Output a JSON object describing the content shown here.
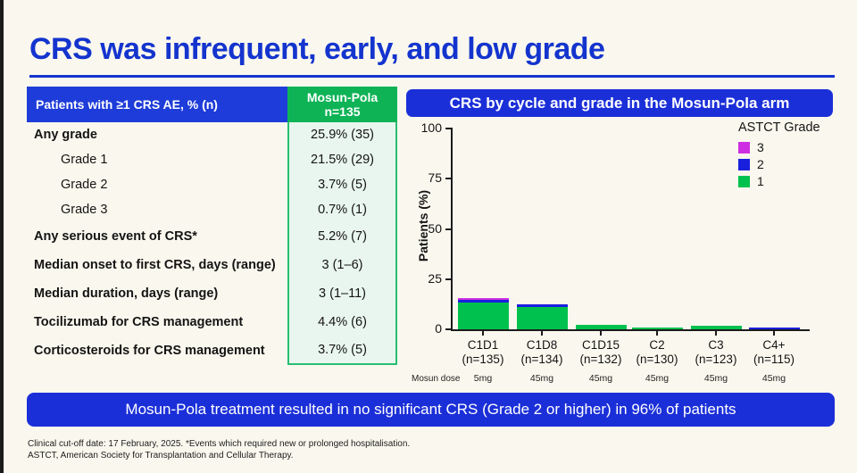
{
  "title": "CRS was infrequent, early, and low grade",
  "table": {
    "header": {
      "label": "Patients with ≥1 CRS AE, % (n)",
      "arm": "Mosun-Pola",
      "arm_n": "n=135"
    },
    "rows": [
      {
        "label": "Any grade",
        "value": "25.9% (35)"
      },
      {
        "label": "Grade 1",
        "value": "21.5% (29)"
      },
      {
        "label": "Grade 2",
        "value": "3.7% (5)"
      },
      {
        "label": "Grade 3",
        "value": "0.7% (1)"
      },
      {
        "label": "Any serious event of CRS*",
        "value": "5.2% (7)"
      },
      {
        "label": "Median onset to first CRS, days (range)",
        "value": "3 (1–6)"
      },
      {
        "label": "Median duration, days (range)",
        "value": "3 (1–11)"
      },
      {
        "label": "Tocilizumab for CRS management",
        "value": "4.4% (6)"
      },
      {
        "label": "Corticosteroids for CRS management",
        "value": "3.7% (5)"
      }
    ]
  },
  "chart": {
    "header": "CRS by cycle and grade in the Mosun-Pola arm"
  },
  "chart_data": {
    "type": "bar",
    "stacked": true,
    "title": "CRS by cycle and grade in the Mosun-Pola arm",
    "ylabel": "Patients (%)",
    "ylim": [
      0,
      100
    ],
    "yticks": [
      0,
      25,
      50,
      75,
      100
    ],
    "grid": false,
    "legend_position": "top-right",
    "legend_title": "ASTCT Grade",
    "categories": [
      "C1D1",
      "C1D8",
      "C1D15",
      "C2",
      "C3",
      "C4+"
    ],
    "category_n": [
      "(n=135)",
      "(n=134)",
      "(n=132)",
      "(n=130)",
      "(n=123)",
      "(n=115)"
    ],
    "dose_row_label": "Mosun dose",
    "doses": [
      "5mg",
      "45mg",
      "45mg",
      "45mg",
      "45mg",
      "45mg"
    ],
    "series": [
      {
        "name": "1",
        "color": "#00C14E",
        "values": [
          13.3,
          11.2,
          2.3,
          0.8,
          1.6,
          0
        ]
      },
      {
        "name": "2",
        "color": "#1A1FDE",
        "values": [
          1.5,
          1.3,
          0,
          0,
          0,
          0.9
        ]
      },
      {
        "name": "3",
        "color": "#CE2FE3",
        "values": [
          0.7,
          0,
          0,
          0,
          0,
          0
        ]
      }
    ]
  },
  "banner": "Mosun-Pola treatment resulted in no significant CRS (Grade 2 or higher) in 96% of patients",
  "footnotes": [
    "Clinical cut-off date: 17 February, 2025. *Events which required new or prolonged hospitalisation.",
    "ASTCT, American Society for Transplantation and Cellular Therapy."
  ],
  "colors": {
    "accent_blue": "#1B2FD8",
    "title_blue": "#1434CE",
    "header_green": "#0EB356",
    "mint": "#E9F6EF",
    "grade1_green": "#00C14E",
    "grade2_blue": "#1A1FDE",
    "grade3_magenta": "#CE2FE3",
    "background": "#FAF8EE"
  }
}
